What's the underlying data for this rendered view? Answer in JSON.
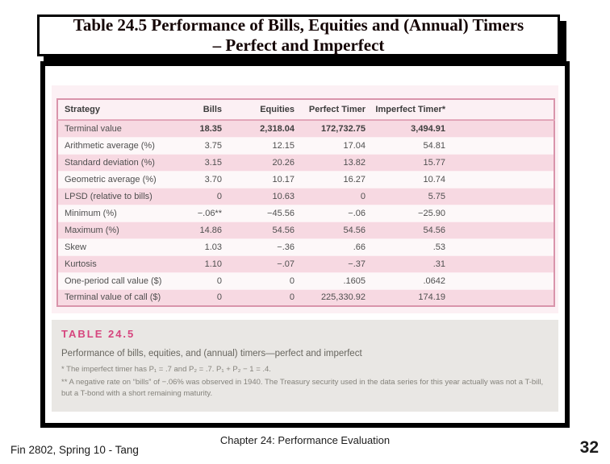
{
  "slide": {
    "title_line1": "Table 24.5 Performance of Bills, Equities and (Annual) Timers",
    "title_line2": "– Perfect and Imperfect",
    "footer_left": "Fin 2802, Spring 10 - Tang",
    "footer_center": "Chapter 24: Performance Evaluation",
    "page_number": "32"
  },
  "figure": {
    "table": {
      "columns": [
        "Strategy",
        "Bills",
        "Equities",
        "Perfect Timer",
        "Imperfect Timer*"
      ],
      "rows": [
        {
          "label": "Terminal value",
          "values": [
            "18.35",
            "2,318.04",
            "172,732.75",
            "3,494.91"
          ]
        },
        {
          "label": "Arithmetic average (%)",
          "values": [
            "3.75",
            "12.15",
            "17.04",
            "54.81"
          ]
        },
        {
          "label": "Standard deviation (%)",
          "values": [
            "3.15",
            "20.26",
            "13.82",
            "15.77"
          ]
        },
        {
          "label": "Geometric average (%)",
          "values": [
            "3.70",
            "10.17",
            "16.27",
            "10.74"
          ]
        },
        {
          "label": "LPSD (relative to bills)",
          "values": [
            "0",
            "10.63",
            "0",
            "5.75"
          ]
        },
        {
          "label": "Minimum (%)",
          "values": [
            "−.06**",
            "−45.56",
            "−.06",
            "−25.90"
          ]
        },
        {
          "label": "Maximum (%)",
          "values": [
            "14.86",
            "54.56",
            "54.56",
            "54.56"
          ]
        },
        {
          "label": "Skew",
          "values": [
            "1.03",
            "−.36",
            ".66",
            ".53"
          ]
        },
        {
          "label": "Kurtosis",
          "values": [
            "1.10",
            "−.07",
            "−.37",
            ".31"
          ]
        },
        {
          "label": "One-period call value ($)",
          "values": [
            "0",
            "0",
            ".1605",
            ".0642"
          ]
        },
        {
          "label": "Terminal value of call ($)",
          "values": [
            "0",
            "0",
            "225,330.92",
            "174.19"
          ]
        }
      ]
    },
    "caption_label": "TABLE 24.5",
    "caption_text": "Performance of bills, equities, and (annual) timers—perfect and imperfect",
    "footnote1": "* The imperfect timer has P₁ = .7 and P₂ = .7. P₁ + P₂ − 1 = .4.",
    "footnote2": "** A negative rate on “bills” of −.06% was observed in 1940. The Treasury security used in the data series for this year actually was not a T-bill, but a T-bond with a short remaining maturity."
  },
  "colors": {
    "accent_pink": "#d6457e",
    "row_stripe_pink": "#f7d9e2",
    "table_border_pink": "#d994ab",
    "figure_background": "#fcf0f4",
    "caption_background": "#e9e7e4",
    "frame_black": "#000000"
  }
}
